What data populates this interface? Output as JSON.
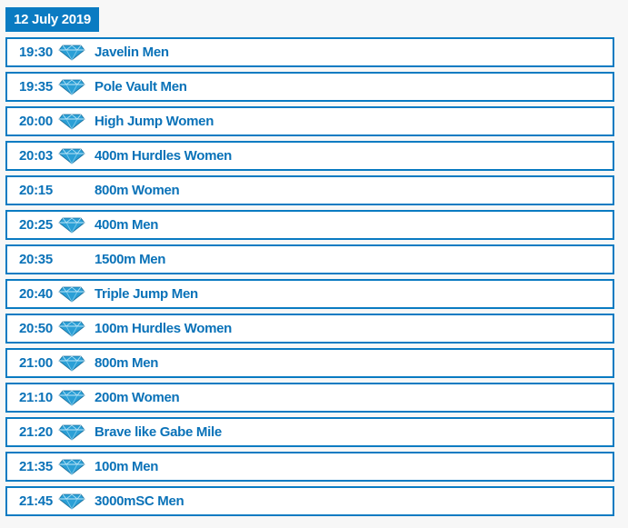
{
  "date_label": "12 July 2019",
  "colors": {
    "accent": "#0a7bc2",
    "text": "#0a72b8",
    "diamond": "#2a9fd6"
  },
  "events": [
    {
      "time": "19:30",
      "diamond": true,
      "name": "Javelin Men"
    },
    {
      "time": "19:35",
      "diamond": true,
      "name": "Pole Vault Men"
    },
    {
      "time": "20:00",
      "diamond": true,
      "name": "High Jump Women"
    },
    {
      "time": "20:03",
      "diamond": true,
      "name": "400m Hurdles Women"
    },
    {
      "time": "20:15",
      "diamond": false,
      "name": "800m Women"
    },
    {
      "time": "20:25",
      "diamond": true,
      "name": "400m Men"
    },
    {
      "time": "20:35",
      "diamond": false,
      "name": "1500m Men"
    },
    {
      "time": "20:40",
      "diamond": true,
      "name": "Triple Jump Men"
    },
    {
      "time": "20:50",
      "diamond": true,
      "name": "100m Hurdles Women"
    },
    {
      "time": "21:00",
      "diamond": true,
      "name": "800m Men"
    },
    {
      "time": "21:10",
      "diamond": true,
      "name": "200m Women"
    },
    {
      "time": "21:20",
      "diamond": true,
      "name": "Brave like Gabe Mile"
    },
    {
      "time": "21:35",
      "diamond": true,
      "name": "100m Men"
    },
    {
      "time": "21:45",
      "diamond": true,
      "name": "3000mSC Men"
    }
  ]
}
